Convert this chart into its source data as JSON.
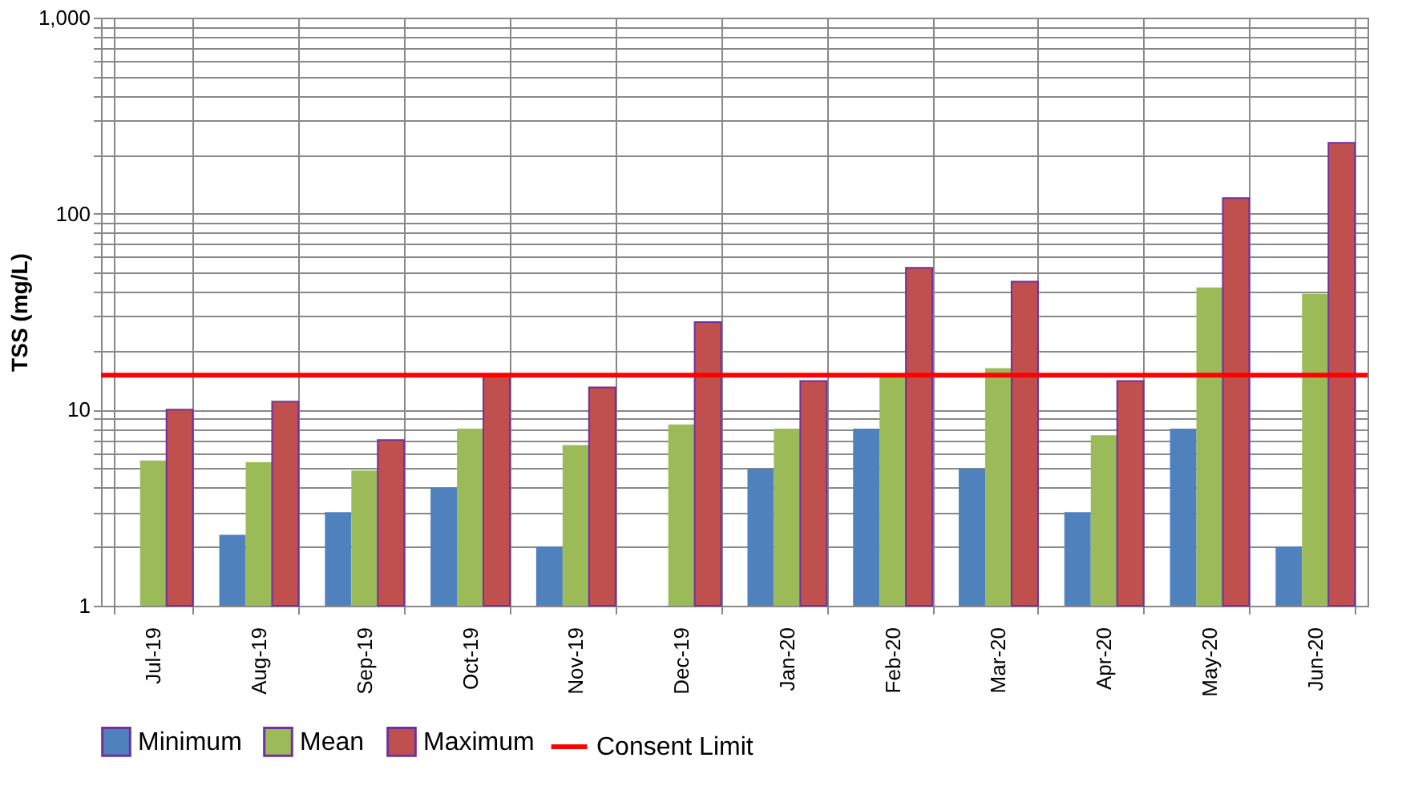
{
  "chart_data": {
    "type": "bar",
    "ylabel": "TSS (mg/L)",
    "categories": [
      "Jul-19",
      "Aug-19",
      "Sep-19",
      "Oct-19",
      "Nov-19",
      "Dec-19",
      "Jan-20",
      "Feb-20",
      "Mar-20",
      "Apr-20",
      "May-20",
      "Jun-20"
    ],
    "series": [
      {
        "name": "Minimum",
        "color": "#4f81bd",
        "values": [
          null,
          2.3,
          3.0,
          4.0,
          2.0,
          null,
          5.0,
          8.0,
          5.0,
          3.0,
          8.0,
          2.0
        ]
      },
      {
        "name": "Mean",
        "color": "#9bbb59",
        "values": [
          5.5,
          5.4,
          4.9,
          8.0,
          6.6,
          8.4,
          8.0,
          15,
          16.3,
          7.4,
          42,
          39
        ]
      },
      {
        "name": "Maximum",
        "color": "#c0504d",
        "values": [
          10,
          11,
          7,
          15,
          13,
          28,
          14,
          53,
          45,
          14,
          120,
          230
        ]
      }
    ],
    "ref_lines": [
      {
        "axis": "y",
        "value": 15,
        "label": "Consent Limit",
        "color": "#ff0000",
        "line_style": "solid"
      }
    ],
    "log": true,
    "ylim": [
      1,
      1000
    ],
    "yticks": [
      1,
      {
        "value": 2,
        "label": null
      },
      {
        "value": 3,
        "label": null
      },
      {
        "value": 4,
        "label": null
      },
      {
        "value": 5,
        "label": null
      },
      {
        "value": 6,
        "label": null
      },
      {
        "value": 7,
        "label": null
      },
      {
        "value": 8,
        "label": null
      },
      {
        "value": 9,
        "label": null
      },
      10,
      {
        "value": 20,
        "label": null
      },
      {
        "value": 30,
        "label": null
      },
      {
        "value": 40,
        "label": null
      },
      {
        "value": 50,
        "label": null
      },
      {
        "value": 60,
        "label": null
      },
      {
        "value": 70,
        "label": null
      },
      {
        "value": 80,
        "label": null
      },
      {
        "value": 90,
        "label": null
      },
      100,
      {
        "value": 200,
        "label": null
      },
      {
        "value": 300,
        "label": null
      },
      {
        "value": 400,
        "label": null
      },
      {
        "value": 500,
        "label": null
      },
      {
        "value": 600,
        "label": null
      },
      {
        "value": 700,
        "label": null
      },
      {
        "value": 800,
        "label": null
      },
      {
        "value": 900,
        "label": null
      },
      {
        "value": 1000,
        "label": "1,000"
      }
    ],
    "grid": true,
    "legend": "bottom"
  }
}
